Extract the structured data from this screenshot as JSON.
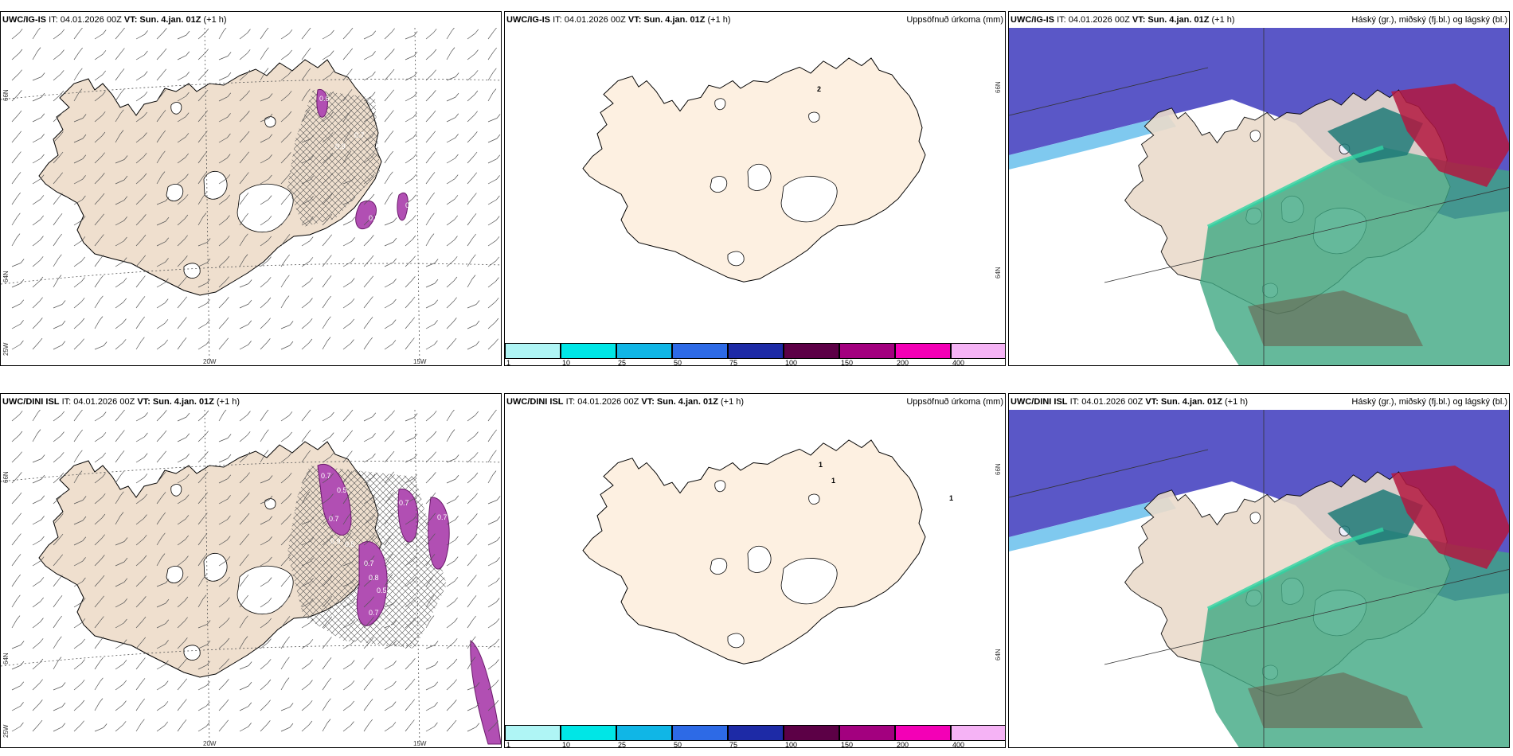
{
  "rows": [
    {
      "model": "UWC/IG-IS",
      "panels": [
        {
          "it": "IT: 04.01.2026 00Z",
          "vt": "VT: Sun. 4.jan. 01Z",
          "lead": "(+1 h)",
          "right": ""
        },
        {
          "it": "IT: 04.01.2026 00Z",
          "vt": "VT: Sun. 4.jan. 01Z",
          "lead": "(+1 h)",
          "right": "Uppsöfnuð úrkoma (mm)"
        },
        {
          "it": "IT: 04.01.2026 00Z",
          "vt": "VT: Sun. 4.jan. 01Z",
          "lead": "(+1 h)",
          "right": "Háský (gr.), miðský (fj.bl.) og lágský (bl.)"
        }
      ],
      "precip_labels": [
        "2"
      ],
      "wind_labels": [
        "0.6",
        "0.9",
        "0.7",
        "0.5",
        "0.8",
        "0.6"
      ]
    },
    {
      "model": "UWC/DINI ISL",
      "panels": [
        {
          "it": "IT: 04.01.2026 00Z",
          "vt": "VT: Sun. 4.jan. 01Z",
          "lead": "(+1 h)",
          "right": ""
        },
        {
          "it": "IT: 04.01.2026 00Z",
          "vt": "VT: Sun. 4.jan. 01Z",
          "lead": "(+1 h)",
          "right": "Uppsöfnuð úrkoma (mm)"
        },
        {
          "it": "IT: 04.01.2026 00Z",
          "vt": "VT: Sun. 4.jan. 01Z",
          "lead": "(+1 h)",
          "right": "Háský (gr.), miðský (fj.bl.) og lágský (bl.)"
        }
      ],
      "precip_labels": [
        "1",
        "1",
        "1"
      ],
      "wind_labels": [
        "0.7",
        "0.5",
        "0.7",
        "0.9",
        "0.5",
        "0.7",
        "0.8",
        "0.5",
        "0.7",
        "0.4",
        "0.7",
        "0.4",
        "0.7"
      ]
    }
  ],
  "axes": {
    "lat_top": "66N",
    "lat_bottom": "64N",
    "lon_left": "25W",
    "lon_mid": "20W",
    "lon_right": "15W"
  },
  "colorbar": {
    "ticks": [
      "1",
      "10",
      "25",
      "50",
      "75",
      "100",
      "150",
      "200",
      "400"
    ],
    "colors": [
      "#aff5f5",
      "#00e6e6",
      "#10b6e6",
      "#2d6ae6",
      "#1d2aa6",
      "#5c0046",
      "#a3007f",
      "#f300b6",
      "#f5b3f5"
    ]
  }
}
